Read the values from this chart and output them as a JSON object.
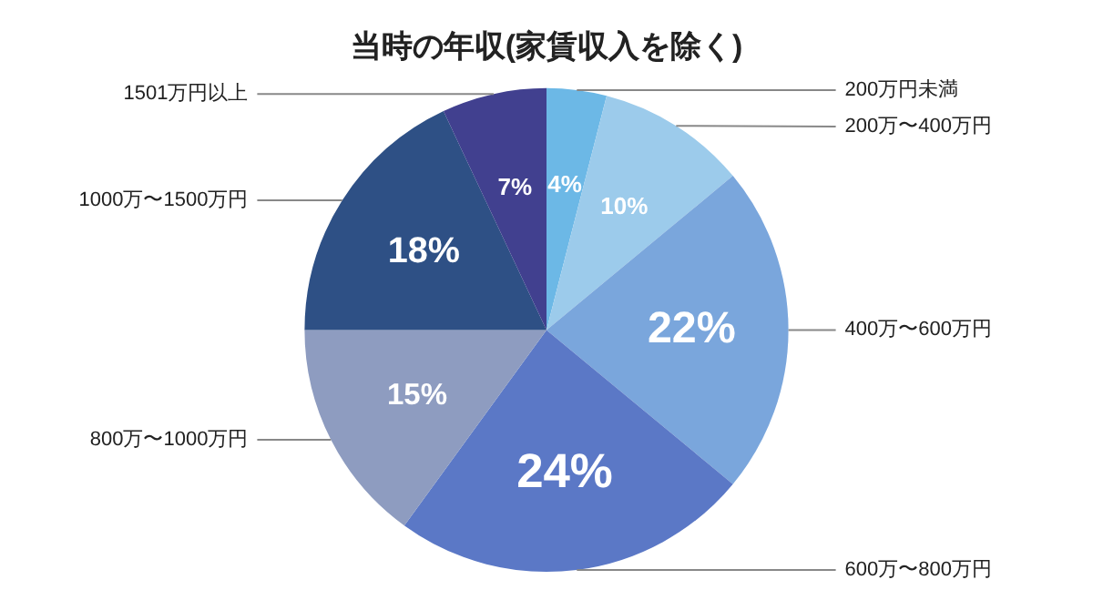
{
  "chart_data": {
    "type": "pie",
    "title": "当時の年収(家賃収入を除く)",
    "categories": [
      "200万円未満",
      "200万〜400万円",
      "400万〜600万円",
      "600万〜800万円",
      "800万〜1000万円",
      "1000万〜1500万円",
      "1501万円以上"
    ],
    "values": [
      4,
      10,
      22,
      24,
      15,
      18,
      7
    ],
    "colors": [
      "#6cb8e6",
      "#9ccbeb",
      "#7aa6dc",
      "#5b78c6",
      "#8e9cc0",
      "#2e5085",
      "#41408f"
    ],
    "value_labels": [
      "4%",
      "10%",
      "22%",
      "24%",
      "15%",
      "18%",
      "7%"
    ]
  }
}
